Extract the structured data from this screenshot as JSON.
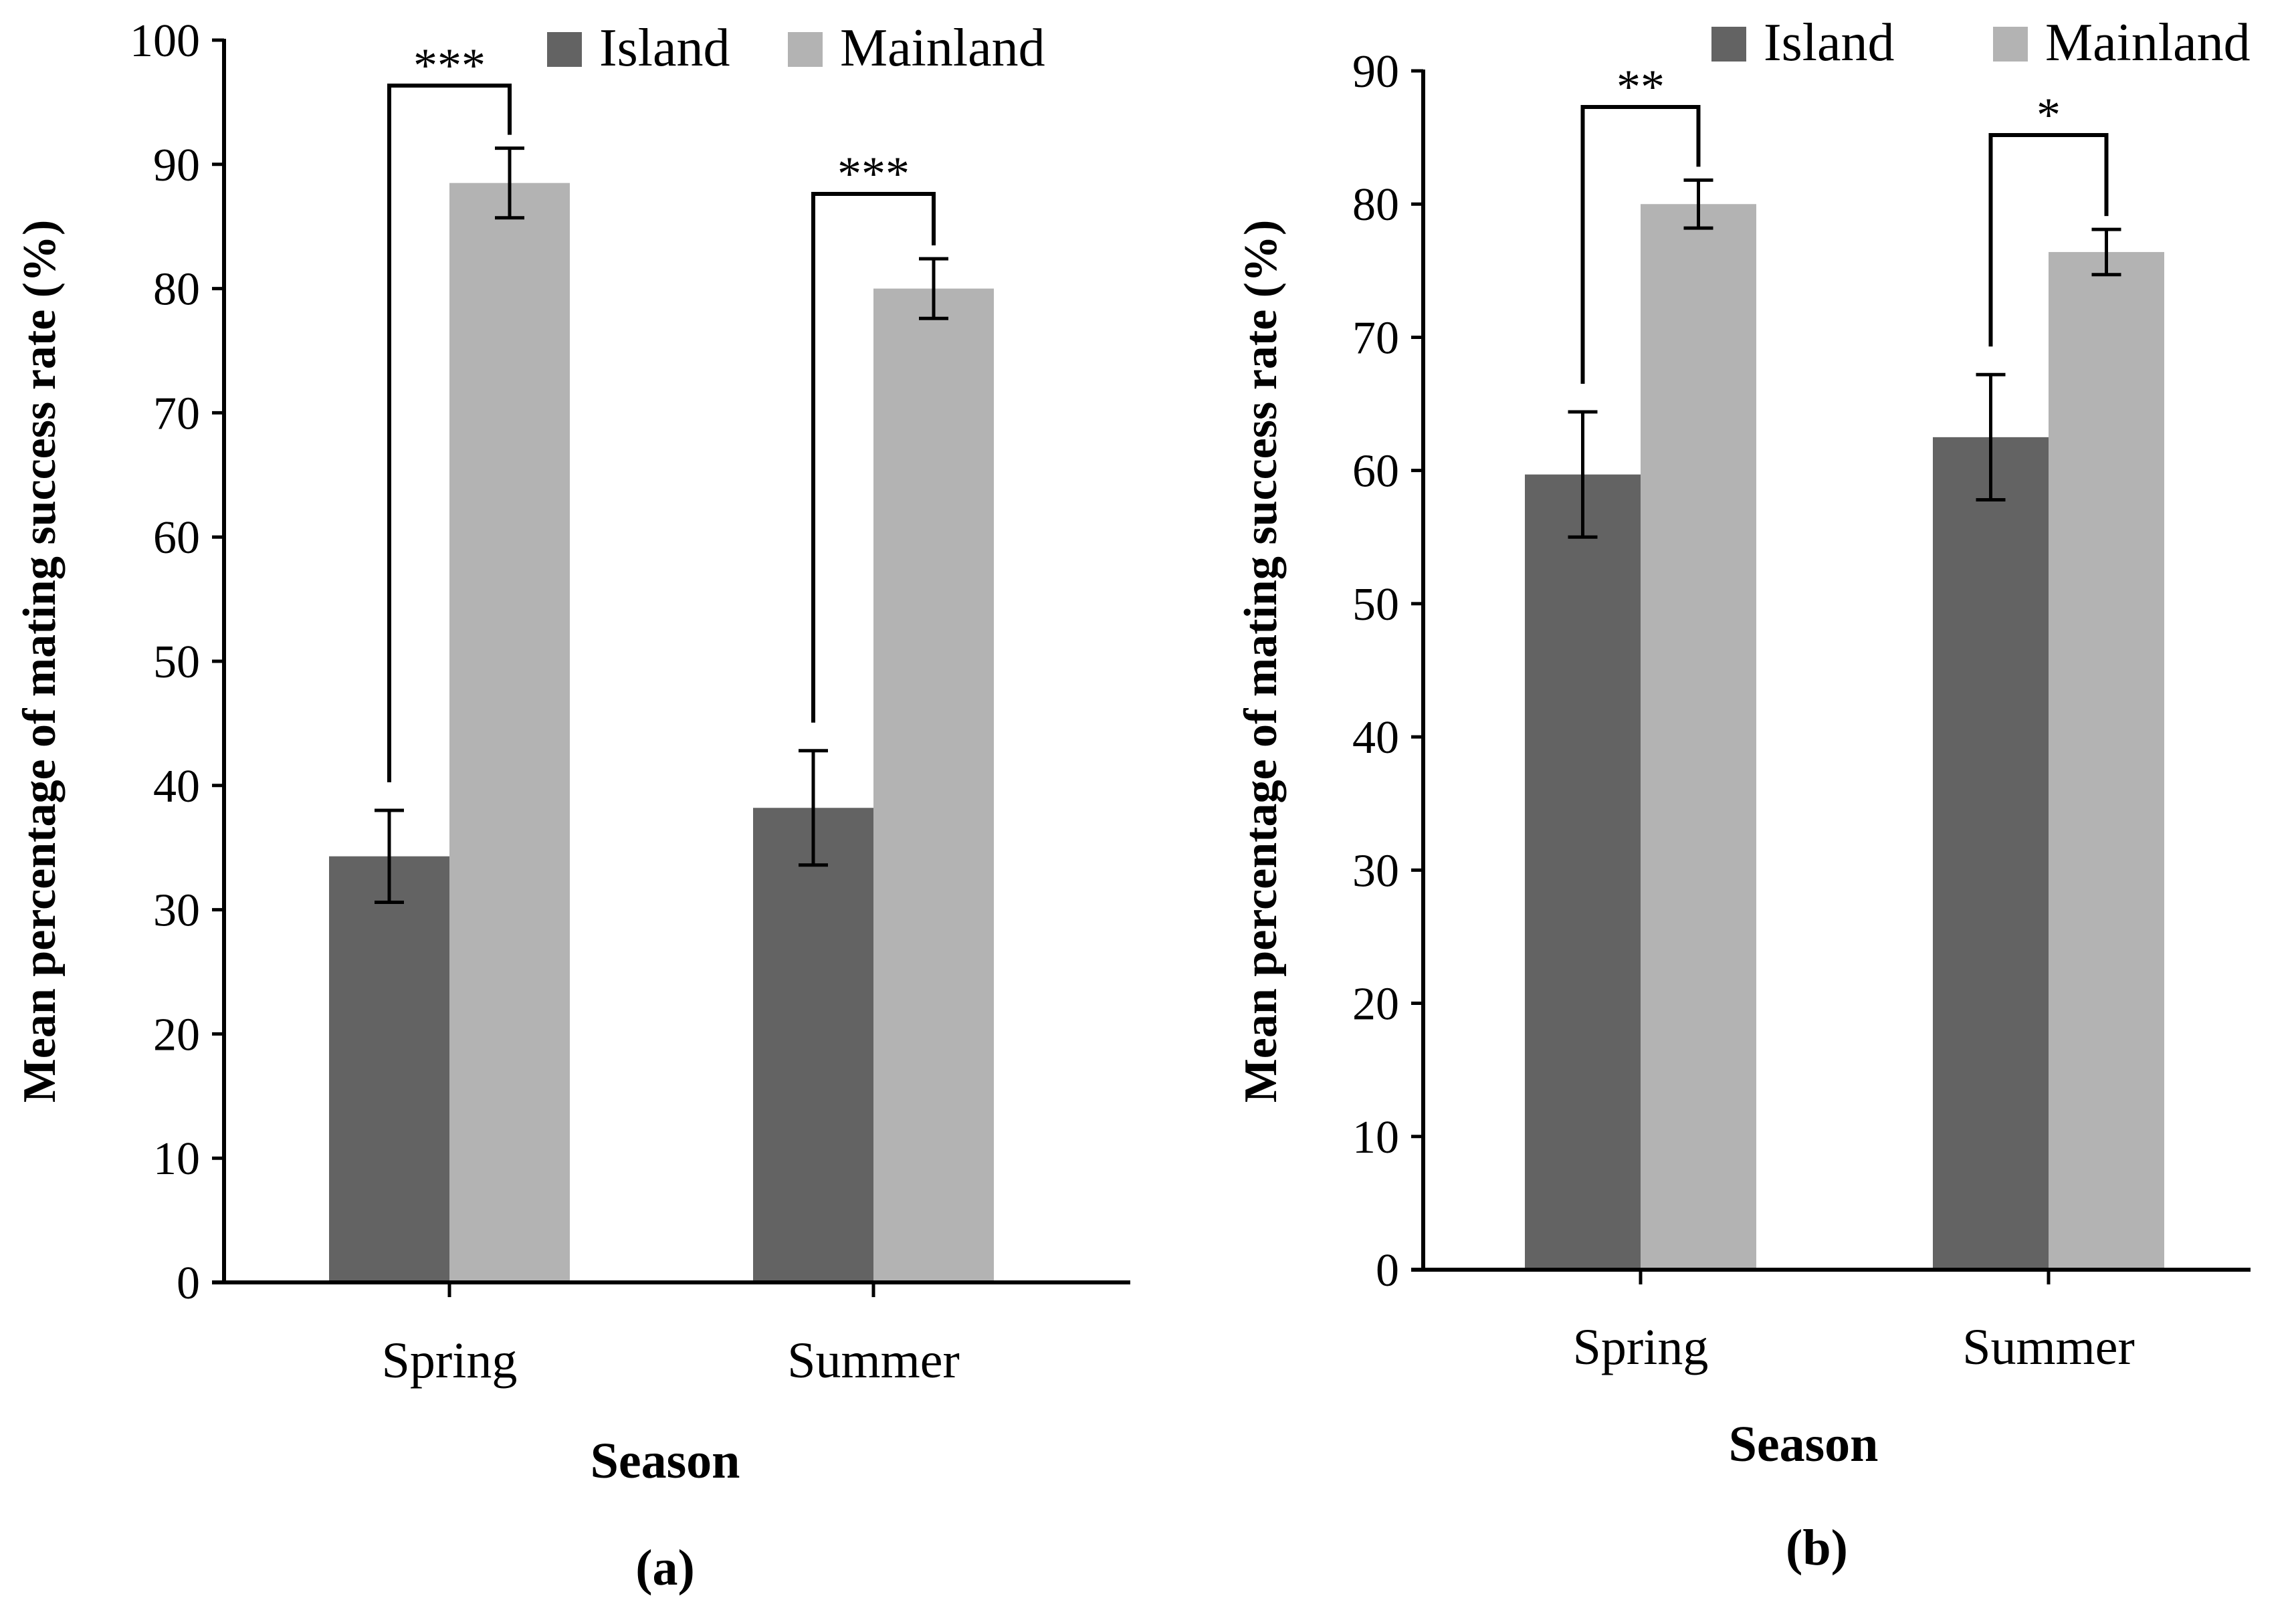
{
  "colors": {
    "island": "#636363",
    "mainland": "#b3b3b3",
    "axis": "#000000"
  },
  "chart_data": [
    {
      "type": "bar",
      "panel_label": "(a)",
      "categories": [
        "Spring",
        "Summer"
      ],
      "series": [
        {
          "name": "Island",
          "values": [
            34.3,
            38.2
          ],
          "errors": [
            3.7,
            4.6
          ]
        },
        {
          "name": "Mainland",
          "values": [
            88.5,
            80.0
          ],
          "errors": [
            2.8,
            2.4
          ]
        }
      ],
      "significance": [
        "***",
        "***"
      ],
      "xlabel": "Season",
      "ylabel": "Mean percentage of mating success rate (%)",
      "ylim": [
        0,
        100
      ],
      "yticks": [
        0,
        10,
        20,
        30,
        40,
        50,
        60,
        70,
        80,
        90,
        100
      ],
      "legend": [
        "Island",
        "Mainland"
      ],
      "legend_position": "top-right",
      "grid": false
    },
    {
      "type": "bar",
      "panel_label": "(b)",
      "categories": [
        "Spring",
        "Summer"
      ],
      "series": [
        {
          "name": "Island",
          "values": [
            59.7,
            62.5
          ],
          "errors": [
            4.7,
            4.7
          ]
        },
        {
          "name": "Mainland",
          "values": [
            80.0,
            76.4
          ],
          "errors": [
            1.8,
            1.7
          ]
        }
      ],
      "significance": [
        "**",
        "*"
      ],
      "xlabel": "Season",
      "ylabel": "Mean percentage of mating success rate (%)",
      "ylim": [
        0,
        90
      ],
      "yticks": [
        0,
        10,
        20,
        30,
        40,
        50,
        60,
        70,
        80,
        90
      ],
      "legend": [
        "Island",
        "Mainland"
      ],
      "legend_position": "top-right",
      "grid": false
    }
  ]
}
